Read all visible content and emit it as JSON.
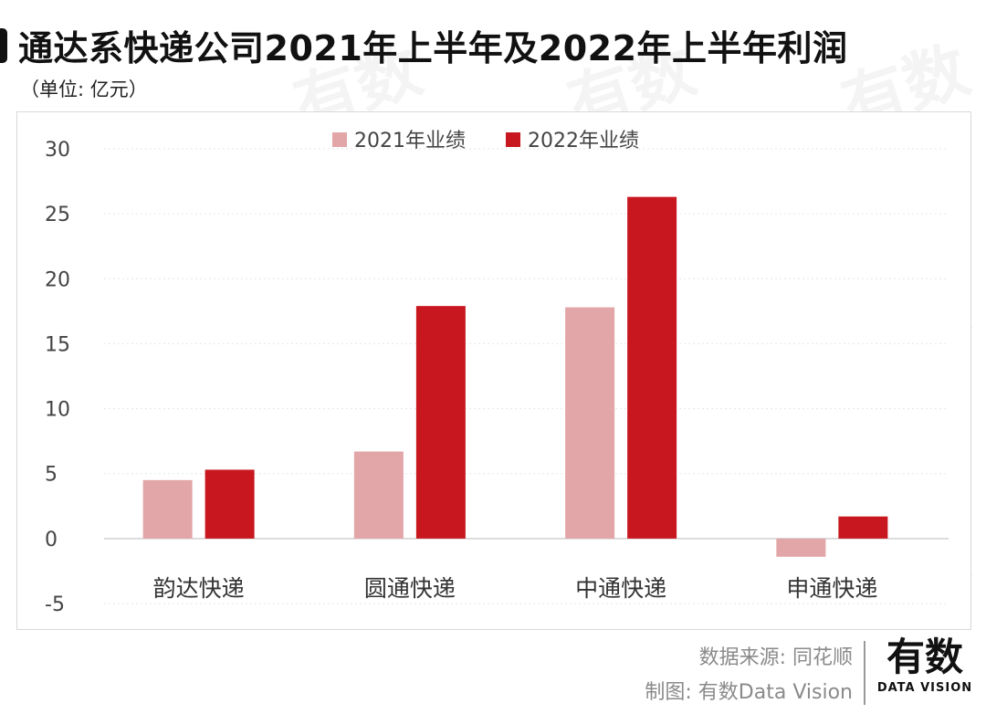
{
  "header": {
    "title": "通达系快递公司2021年上半年及2022年上半年利润",
    "unit": "（单位: 亿元）"
  },
  "footer": {
    "source": "数据来源: 同花顺",
    "credit": "制图: 有数Data Vision",
    "logo_main": "有数",
    "logo_sub": "DATA VISION"
  },
  "colors": {
    "series_2021": "#e2a5a8",
    "series_2022": "#c8171e",
    "grid": "#e6e6e6",
    "axis_text": "#444444"
  },
  "chart_data": {
    "type": "bar",
    "title": "通达系快递公司2021年上半年及2022年上半年利润",
    "ylabel": "（单位: 亿元）",
    "categories": [
      "韵达快递",
      "圆通快递",
      "中通快递",
      "申通快递"
    ],
    "series": [
      {
        "name": "2021年业绩",
        "values": [
          4.5,
          6.7,
          17.8,
          -1.4
        ]
      },
      {
        "name": "2022年业绩",
        "values": [
          5.3,
          17.9,
          26.3,
          1.7
        ]
      }
    ],
    "ylim": [
      -5,
      30
    ],
    "yticks": [
      30,
      25,
      20,
      15,
      10,
      5,
      0,
      -5
    ],
    "grid": true,
    "legend": "top-center"
  }
}
